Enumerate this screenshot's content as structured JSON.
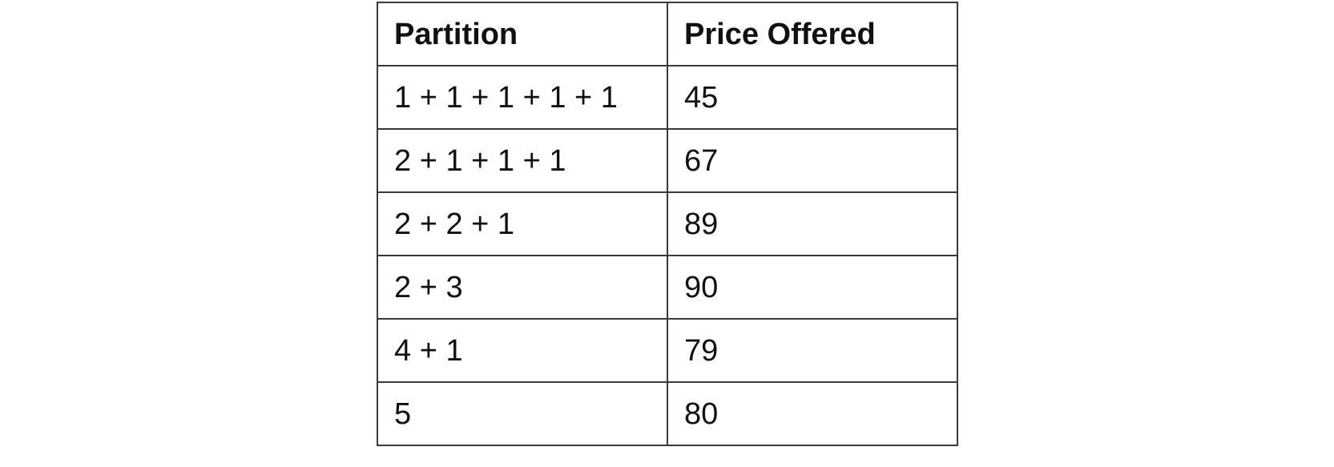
{
  "table": {
    "headers": [
      "Partition",
      "Price Offered"
    ],
    "rows": [
      [
        "1 + 1 + 1 + 1 + 1",
        "45"
      ],
      [
        "2 + 1 + 1 + 1",
        "67"
      ],
      [
        "2 + 2 + 1",
        "89"
      ],
      [
        "2 + 3",
        "90"
      ],
      [
        "4 + 1",
        "79"
      ],
      [
        "5",
        "80"
      ]
    ]
  }
}
